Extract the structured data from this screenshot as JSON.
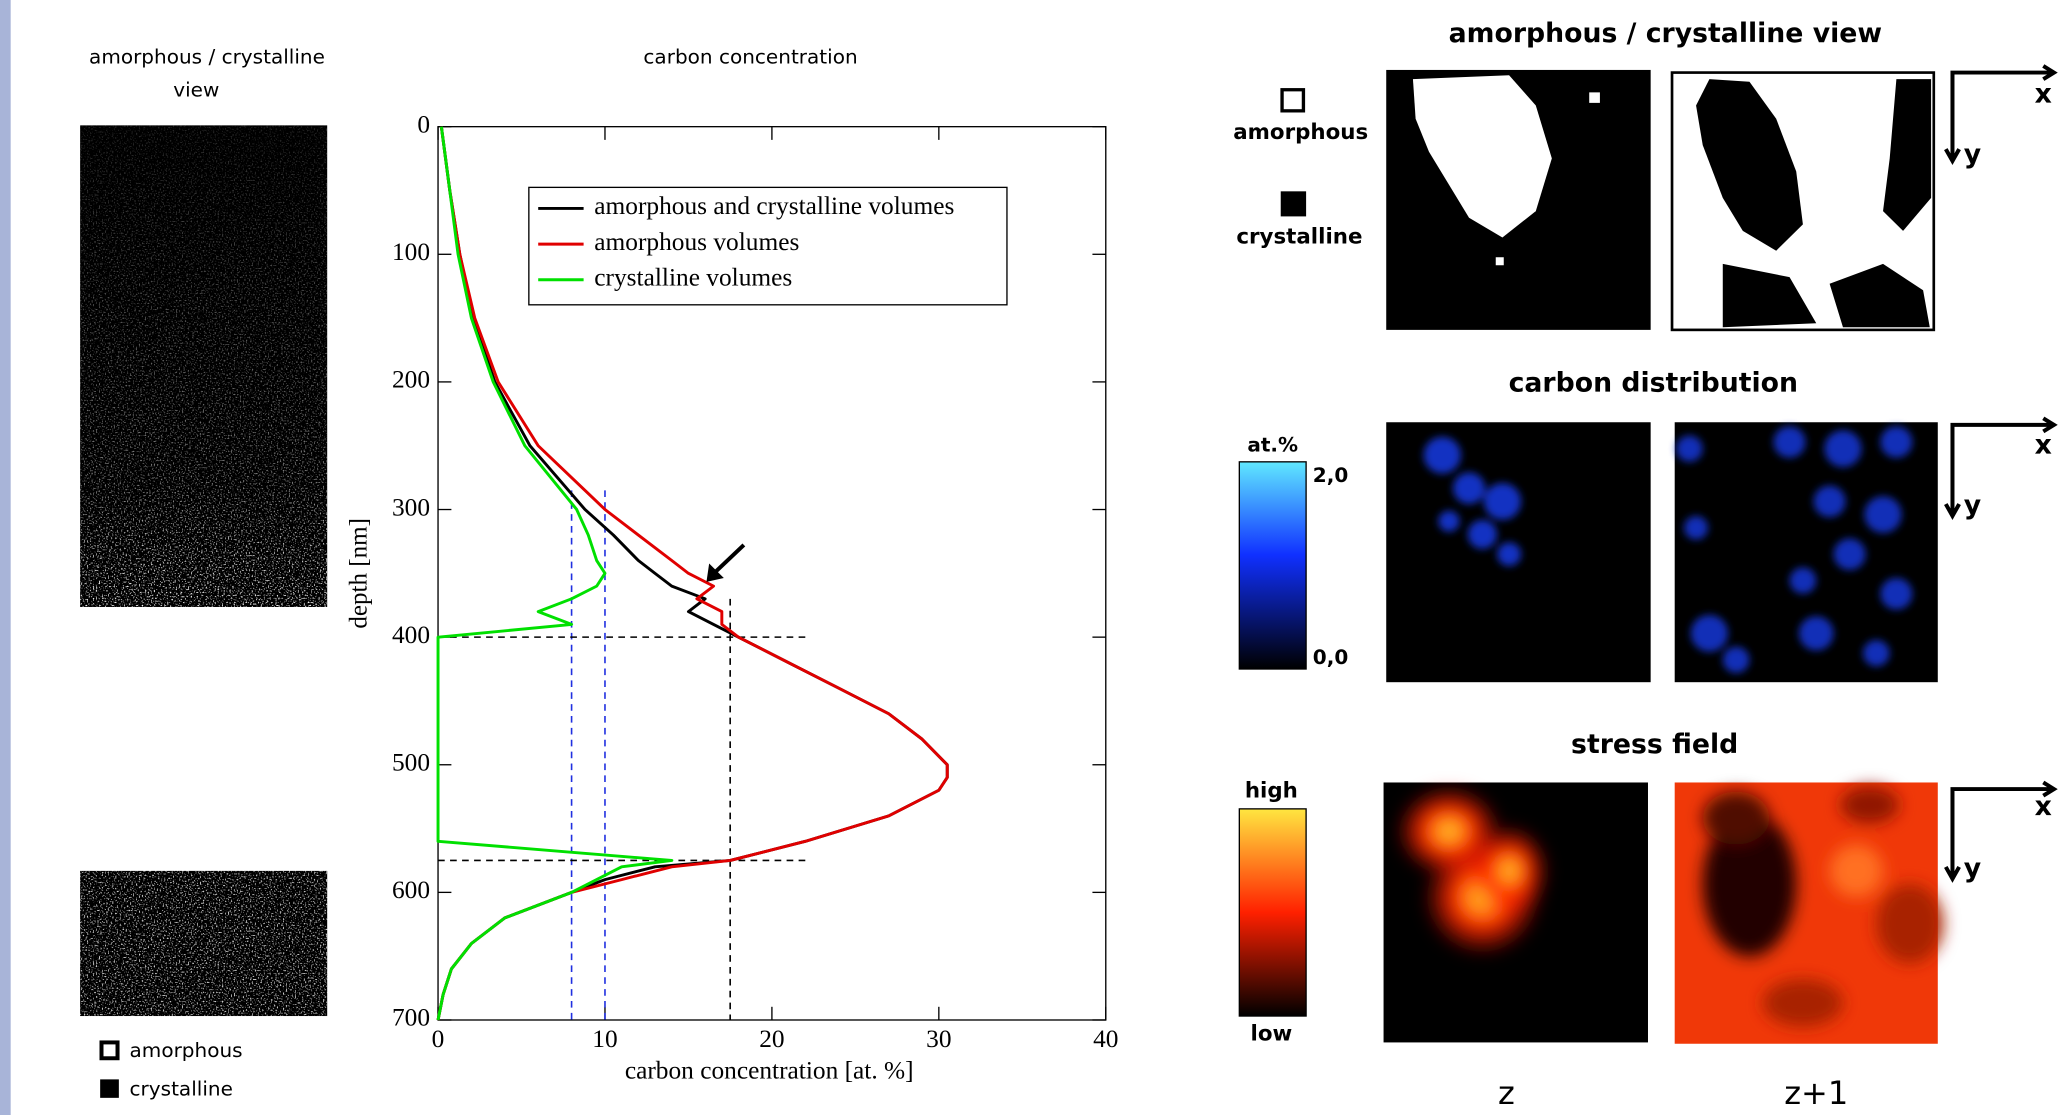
{
  "left_panel": {
    "title_line1": "amorphous / crystalline",
    "title_line2": "view",
    "legend": [
      "amorphous",
      "crystalline"
    ]
  },
  "chart_data": {
    "type": "line",
    "title": "carbon concentration",
    "x_label": "carbon concentration [at. %]",
    "y_label": "depth [nm]",
    "xlim": [
      0,
      40
    ],
    "xticks": [
      0,
      10,
      20,
      30,
      40
    ],
    "ylim": [
      0,
      700
    ],
    "yticks": [
      0,
      100,
      200,
      300,
      400,
      500,
      600,
      700
    ],
    "y_inverted": true,
    "depth": [
      0,
      50,
      100,
      150,
      200,
      250,
      300,
      320,
      340,
      350,
      360,
      370,
      380,
      390,
      400,
      420,
      440,
      460,
      480,
      500,
      510,
      520,
      540,
      560,
      575,
      580,
      590,
      600,
      620,
      640,
      660,
      680,
      700
    ],
    "series": [
      {
        "name": "amorphous and crystalline volumes",
        "color": "#000000",
        "values": [
          0.2,
          0.7,
          1.3,
          2.1,
          3.4,
          5.5,
          8.8,
          10.5,
          12,
          13,
          14,
          16,
          15,
          16.5,
          18,
          21,
          24,
          27,
          29,
          30.5,
          30.5,
          30,
          27,
          22,
          17.5,
          13,
          10,
          8,
          4,
          2,
          0.8,
          0.3,
          0
        ]
      },
      {
        "name": "amorphous volumes",
        "color": "#e00000",
        "values": [
          0.2,
          0.7,
          1.3,
          2.2,
          3.6,
          6,
          10,
          12,
          14,
          15,
          16.5,
          15.5,
          17,
          17,
          18,
          21,
          24,
          27,
          29,
          30.5,
          30.5,
          30,
          27,
          22,
          17.5,
          14,
          11,
          8,
          4,
          2,
          0.8,
          0.3,
          0
        ]
      },
      {
        "name": "crystalline volumes",
        "color": "#00e000",
        "values": [
          0.2,
          0.7,
          1.2,
          2,
          3.3,
          5.2,
          8.3,
          9,
          9.5,
          10,
          9.5,
          8,
          6,
          8,
          0,
          0,
          0,
          0,
          0,
          0,
          0,
          0,
          0,
          0,
          14,
          11,
          9.5,
          8,
          4,
          2,
          0.8,
          0.3,
          0
        ]
      }
    ],
    "reference_lines": [
      {
        "axis": "x",
        "value": 8,
        "from": 285,
        "to": 700,
        "color": "#2030e0"
      },
      {
        "axis": "x",
        "value": 10,
        "from": 285,
        "to": 700,
        "color": "#2030e0"
      },
      {
        "axis": "x",
        "value": 17.5,
        "from": 370,
        "to": 700,
        "color": "#000000"
      },
      {
        "axis": "y",
        "value": 400,
        "from": 0,
        "to": 22,
        "color": "#000000"
      },
      {
        "axis": "y",
        "value": 575,
        "from": 0,
        "to": 22,
        "color": "#000000"
      }
    ]
  },
  "right_panel": {
    "view_title": "amorphous / crystalline view",
    "view_legend": [
      "amorphous",
      "crystalline"
    ],
    "carbon_title": "carbon distribution",
    "carbon_unit": "at.%",
    "carbon_max": "2,0",
    "carbon_min": "0,0",
    "stress_title": "stress field",
    "stress_high": "high",
    "stress_low": "low",
    "axis_x": "x",
    "axis_y": "y",
    "columns": [
      "z",
      "z+1"
    ]
  }
}
